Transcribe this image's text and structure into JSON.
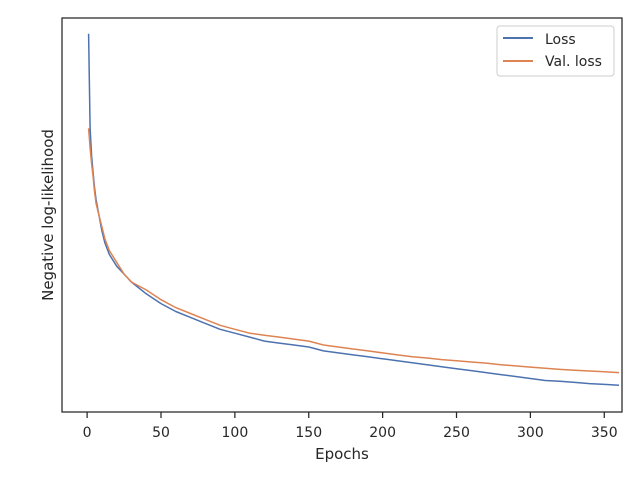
{
  "chart_data": {
    "type": "line",
    "title": "",
    "xlabel": "Epochs",
    "ylabel": "Negative log-likelihood",
    "xlim": [
      -17,
      362
    ],
    "ylim": [
      0,
      1
    ],
    "xticks": [
      0,
      50,
      100,
      150,
      200,
      250,
      300,
      350
    ],
    "yticks_visible": false,
    "grid": false,
    "legend_position": "top-right",
    "series": [
      {
        "name": "Loss",
        "color": "#4c72b0",
        "x": [
          1,
          2,
          3,
          4,
          5,
          6,
          8,
          10,
          12,
          15,
          20,
          25,
          30,
          40,
          50,
          60,
          70,
          80,
          90,
          100,
          110,
          120,
          130,
          140,
          150,
          160,
          170,
          180,
          190,
          200,
          210,
          220,
          230,
          240,
          250,
          260,
          270,
          280,
          290,
          300,
          310,
          320,
          330,
          340,
          350,
          360
        ],
        "y": [
          0.96,
          0.72,
          0.65,
          0.61,
          0.57,
          0.54,
          0.5,
          0.46,
          0.43,
          0.4,
          0.37,
          0.35,
          0.33,
          0.3,
          0.275,
          0.255,
          0.24,
          0.225,
          0.21,
          0.2,
          0.19,
          0.18,
          0.175,
          0.17,
          0.165,
          0.155,
          0.15,
          0.145,
          0.14,
          0.135,
          0.13,
          0.125,
          0.12,
          0.115,
          0.11,
          0.105,
          0.1,
          0.095,
          0.09,
          0.085,
          0.08,
          0.078,
          0.075,
          0.072,
          0.07,
          0.068
        ]
      },
      {
        "name": "Val. loss",
        "color": "#dd8452",
        "x": [
          1,
          2,
          3,
          4,
          5,
          6,
          8,
          10,
          12,
          15,
          20,
          25,
          30,
          40,
          50,
          60,
          70,
          80,
          90,
          100,
          110,
          120,
          130,
          140,
          150,
          160,
          170,
          180,
          190,
          200,
          210,
          220,
          230,
          240,
          250,
          260,
          270,
          280,
          290,
          300,
          310,
          320,
          330,
          340,
          350,
          360
        ],
        "y": [
          0.72,
          0.67,
          0.63,
          0.6,
          0.56,
          0.53,
          0.5,
          0.47,
          0.44,
          0.41,
          0.38,
          0.35,
          0.33,
          0.31,
          0.285,
          0.265,
          0.25,
          0.235,
          0.22,
          0.21,
          0.2,
          0.195,
          0.19,
          0.185,
          0.18,
          0.17,
          0.165,
          0.16,
          0.155,
          0.15,
          0.145,
          0.14,
          0.137,
          0.133,
          0.13,
          0.127,
          0.124,
          0.12,
          0.117,
          0.114,
          0.111,
          0.108,
          0.106,
          0.104,
          0.102,
          0.1
        ]
      }
    ]
  }
}
